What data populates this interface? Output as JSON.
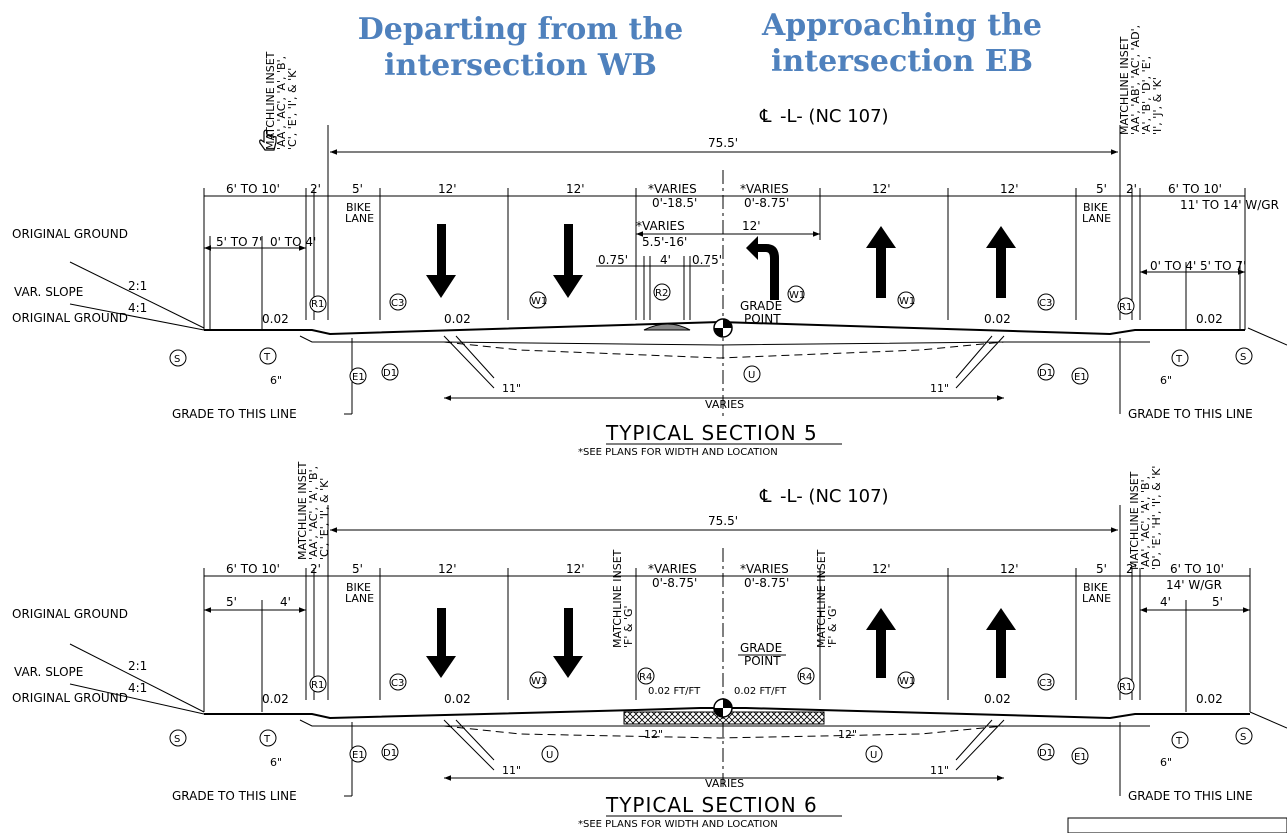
{
  "headers": {
    "left": "Departing from the intersection WB",
    "right": "Approaching the intersection EB"
  },
  "sections": [
    {
      "centerline_label": "-L- (NC 107)",
      "total_width": "75.5'",
      "matchline_left": [
        "MATCHLINE INSET",
        "'AA', 'AC', 'A', 'B',",
        "'C', 'E', 'I', & 'K'"
      ],
      "matchline_right": [
        "MATCHLINE INSET",
        "'AA', 'AB', 'AC', 'AD',",
        "'A', 'B', 'D', 'E',",
        "'I', 'J', & 'K'"
      ],
      "dims_top": [
        "6' TO 10'",
        "2'",
        "5'",
        "12'",
        "12'",
        "*VARIES",
        "0'-18.5'",
        "*VARIES",
        "0'-8.75'",
        "12'",
        "12'",
        "5'",
        "2'",
        "6' TO 10'"
      ],
      "bike_lane": "BIKE LANE",
      "sub_dims_left": [
        "5' TO 7'",
        "0' TO 4'"
      ],
      "sub_dims_right": [
        "11' TO 14' W/GR",
        "0' TO 4'",
        "5' TO 7'"
      ],
      "median": [
        "*VARIES",
        "5.5'-16'",
        "12'",
        "0.75'",
        "4'",
        "0.75'"
      ],
      "slopes": [
        "0.02",
        "0.02",
        "0.02",
        "0.02"
      ],
      "labels_left": [
        "ORIGINAL GROUND",
        "VAR. SLOPE",
        "ORIGINAL GROUND",
        "2:1",
        "4:1"
      ],
      "grade_point": "GRADE POINT",
      "grade_line": "GRADE TO THIS LINE",
      "varies": "VARIES",
      "title": "TYPICAL SECTION 5",
      "note": "*SEE PLANS FOR WIDTH AND LOCATION",
      "small_dims": [
        "6\"",
        "11\"",
        "11\"",
        "6\""
      ],
      "callouts": [
        "S",
        "T",
        "R1",
        "E1",
        "D1",
        "C3",
        "W1",
        "R2",
        "W1",
        "U",
        "W1",
        "C3",
        "D1",
        "E1",
        "R1",
        "T",
        "S"
      ]
    },
    {
      "centerline_label": "-L- (NC 107)",
      "total_width": "75.5'",
      "matchline_left": [
        "MATCHLINE INSET",
        "'AA', 'AC', 'A', 'B',",
        "'C', 'E', 'I', & 'K'"
      ],
      "matchline_right": [
        "MATCHLINE INSET",
        "'AA', 'AC', 'A', 'B',",
        "'D', 'E', 'H', 'I', & 'K'"
      ],
      "matchline_mid": [
        "MATCHLINE INSET",
        "'F' & 'G'"
      ],
      "dims_top": [
        "6' TO 10'",
        "2'",
        "5'",
        "12'",
        "12'",
        "*VARIES",
        "0'-8.75'",
        "*VARIES",
        "0'-8.75'",
        "12'",
        "12'",
        "5'",
        "2'",
        "6' TO 10'"
      ],
      "bike_lane": "BIKE LANE",
      "sub_dims_left": [
        "5'",
        "4'"
      ],
      "sub_dims_right": [
        "14' W/GR",
        "4'",
        "5'"
      ],
      "slopes": [
        "0.02",
        "0.02",
        "0.02",
        "0.02"
      ],
      "median_slopes": [
        "0.02 FT/FT",
        "0.02 FT/FT"
      ],
      "labels_left": [
        "ORIGINAL GROUND",
        "VAR. SLOPE",
        "ORIGINAL GROUND",
        "2:1",
        "4:1"
      ],
      "grade_point": "GRADE POINT",
      "grade_line": "GRADE TO THIS LINE",
      "varies": "VARIES",
      "title": "TYPICAL SECTION 6",
      "note": "*SEE PLANS FOR WIDTH AND LOCATION",
      "small_dims": [
        "6\"",
        "11\"",
        "12\"",
        "12\"",
        "11\"",
        "6\""
      ],
      "callouts": [
        "S",
        "T",
        "R1",
        "E1",
        "D1",
        "C3",
        "U",
        "W1",
        "R4",
        "R4",
        "U",
        "W1",
        "C3",
        "D1",
        "E1",
        "R1",
        "T",
        "S"
      ]
    }
  ]
}
